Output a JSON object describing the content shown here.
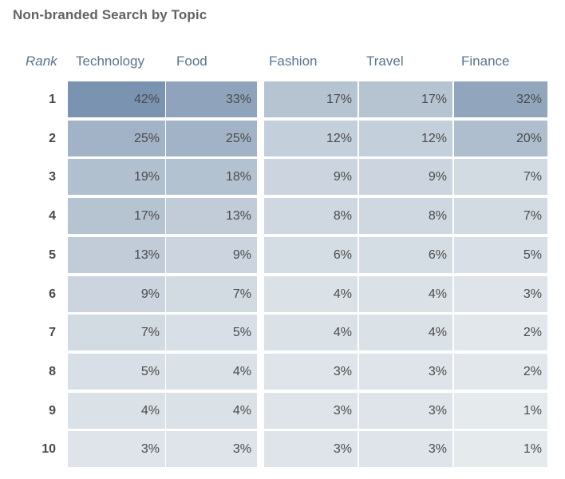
{
  "chart_data": {
    "type": "heatmap",
    "title": "Non-branded Search by Topic",
    "row_header": "Rank",
    "rows": [
      "1",
      "2",
      "3",
      "4",
      "5",
      "6",
      "7",
      "8",
      "9",
      "10"
    ],
    "columns": [
      "Technology",
      "Food",
      "Fashion",
      "Travel",
      "Finance"
    ],
    "values": [
      [
        42,
        33,
        17,
        17,
        32
      ],
      [
        25,
        25,
        12,
        12,
        20
      ],
      [
        19,
        18,
        9,
        9,
        7
      ],
      [
        17,
        13,
        8,
        8,
        7
      ],
      [
        13,
        9,
        6,
        6,
        5
      ],
      [
        9,
        7,
        4,
        4,
        3
      ],
      [
        7,
        5,
        4,
        4,
        2
      ],
      [
        5,
        4,
        3,
        3,
        2
      ],
      [
        4,
        4,
        3,
        3,
        1
      ],
      [
        3,
        3,
        3,
        3,
        1
      ]
    ],
    "value_suffix": "%",
    "color_scale": {
      "low": "#eaeef0",
      "high": "#7a93b0"
    }
  }
}
